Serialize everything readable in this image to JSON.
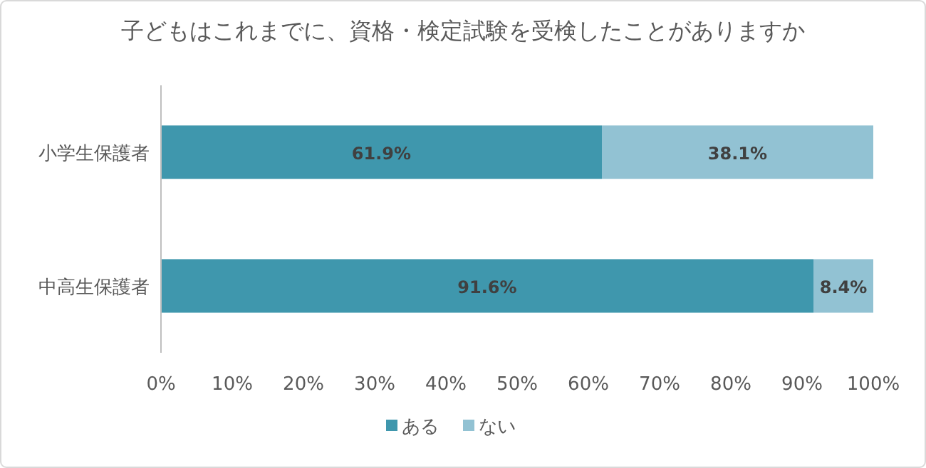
{
  "chart_data": {
    "type": "bar",
    "orientation": "horizontal",
    "stacked": true,
    "title": "子どもはこれまでに、資格・検定試験を受検したことがありますか",
    "categories": [
      "小学生保護者",
      "中高生保護者"
    ],
    "series": [
      {
        "name": "ある",
        "color": "#3f97ad",
        "values": [
          61.9,
          91.6
        ],
        "value_labels": [
          "61.9%",
          "91.6%"
        ]
      },
      {
        "name": "ない",
        "color": "#92c2d3",
        "values": [
          38.1,
          8.4
        ],
        "value_labels": [
          "38.1%",
          "8.4%"
        ]
      }
    ],
    "xlim": [
      0,
      100
    ],
    "xticks": [
      {
        "value": 0,
        "label": "0%"
      },
      {
        "value": 10,
        "label": "10%"
      },
      {
        "value": 20,
        "label": "20%"
      },
      {
        "value": 30,
        "label": "30%"
      },
      {
        "value": 40,
        "label": "40%"
      },
      {
        "value": 50,
        "label": "50%"
      },
      {
        "value": 60,
        "label": "60%"
      },
      {
        "value": 70,
        "label": "70%"
      },
      {
        "value": 80,
        "label": "80%"
      },
      {
        "value": 90,
        "label": "90%"
      },
      {
        "value": 100,
        "label": "100%"
      }
    ],
    "grid": false,
    "legend": "bottom"
  }
}
